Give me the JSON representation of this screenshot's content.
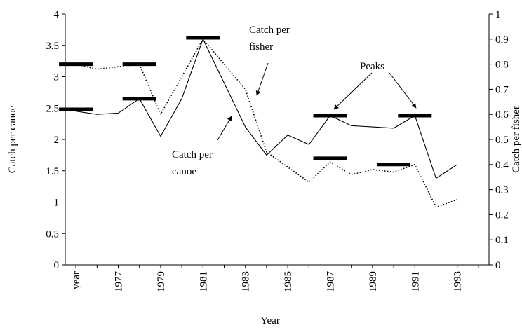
{
  "chart_data": {
    "type": "line",
    "xlabel": "Year",
    "ylabel": "Catch per canoe",
    "y2label": "Catch per fisher",
    "categories": [
      "year",
      null,
      "1977",
      null,
      "1979",
      null,
      "1981",
      null,
      "1983",
      null,
      "1985",
      null,
      "1987",
      null,
      "1989",
      null,
      "1991",
      null,
      "1993",
      null
    ],
    "series": [
      {
        "name": "Catch per canoe",
        "color": "#000000",
        "dash": "solid",
        "values": [
          2.45,
          2.4,
          2.42,
          2.65,
          2.05,
          2.65,
          3.6,
          2.9,
          2.2,
          1.75,
          2.07,
          1.92,
          2.38,
          2.22,
          2.2,
          2.18,
          2.38,
          1.38,
          1.6,
          null
        ]
      },
      {
        "name": "Catch per fisher",
        "color": "#000000",
        "dash": "dotted",
        "axis": "y2",
        "values": [
          0.8,
          0.78,
          0.79,
          0.8,
          0.6,
          0.75,
          0.9,
          0.8,
          0.7,
          0.45,
          0.39,
          0.33,
          0.41,
          0.36,
          0.38,
          0.37,
          0.4,
          0.23,
          0.26,
          null
        ]
      }
    ],
    "peaks": [
      {
        "x": 0,
        "value": 2.48
      },
      {
        "x": 0,
        "value": 3.2
      },
      {
        "x": 3,
        "value": 3.2
      },
      {
        "x": 3,
        "value": 2.65
      },
      {
        "x": 6,
        "value": 3.62
      },
      {
        "x": 12,
        "value": 2.38
      },
      {
        "x": 12,
        "value": 1.7
      },
      {
        "x": 16,
        "value": 2.38
      },
      {
        "x": 15,
        "value": 1.6
      }
    ],
    "annotations": [
      {
        "lines": [
          "Catch per",
          "fisher"
        ]
      },
      {
        "lines": [
          "Catch per",
          "canoe"
        ]
      },
      {
        "lines": [
          "Peaks"
        ]
      }
    ],
    "ylim": [
      0,
      4
    ],
    "yticks": [
      0,
      0.5,
      1,
      1.5,
      2,
      2.5,
      3,
      3.5,
      4
    ],
    "y2lim": [
      0,
      1
    ],
    "y2ticks": [
      0,
      0.1,
      0.2,
      0.3,
      0.4,
      0.5,
      0.6,
      0.7,
      0.8,
      0.9,
      1
    ]
  }
}
